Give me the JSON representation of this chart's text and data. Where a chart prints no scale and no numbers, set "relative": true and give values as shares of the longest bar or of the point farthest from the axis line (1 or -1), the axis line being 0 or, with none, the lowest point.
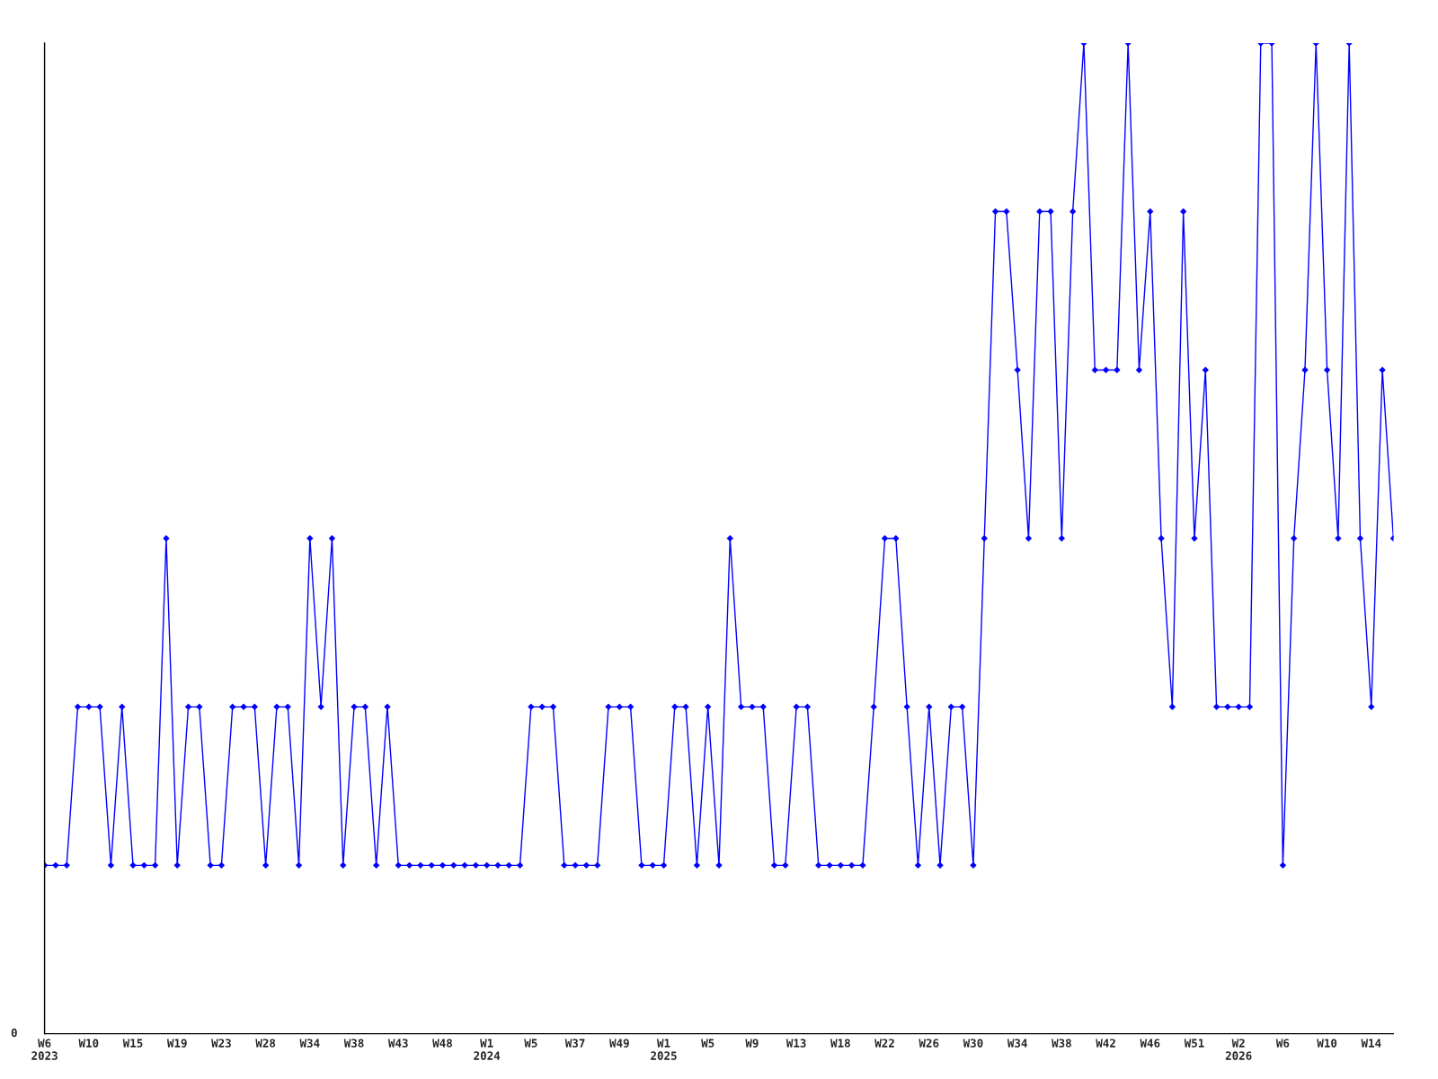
{
  "chart_data": {
    "type": "line",
    "relative": true,
    "categories": [
      "W6\n2023",
      null,
      null,
      null,
      "W10",
      null,
      null,
      null,
      "W15",
      null,
      null,
      null,
      "W19",
      null,
      null,
      null,
      "W23",
      null,
      null,
      null,
      "W28",
      null,
      null,
      null,
      "W34",
      null,
      null,
      null,
      "W38",
      null,
      null,
      null,
      "W43",
      null,
      null,
      null,
      "W48",
      null,
      null,
      null,
      "W1\n2024",
      null,
      null,
      null,
      "W5",
      null,
      null,
      null,
      "W37",
      null,
      null,
      null,
      "W49",
      null,
      null,
      null,
      "W1\n2025",
      null,
      null,
      null,
      "W5",
      null,
      null,
      null,
      "W9",
      null,
      null,
      null,
      "W13",
      null,
      null,
      null,
      "W18",
      null,
      null,
      null,
      "W22",
      null,
      null,
      null,
      "W26",
      null,
      null,
      null,
      "W30",
      null,
      null,
      null,
      "W34",
      null,
      null,
      null,
      "W38",
      null,
      null,
      null,
      "W42",
      null,
      null,
      null,
      "W46",
      null,
      null,
      null,
      "W51",
      null,
      null,
      null,
      "W2\n2026",
      null,
      null,
      null,
      "W6",
      null,
      null,
      null,
      "W10",
      null,
      null,
      null,
      "W14",
      null,
      null
    ],
    "series": [
      {
        "color": "#0000ff",
        "values": [
          0.17,
          0.17,
          0.17,
          0.33,
          0.33,
          0.33,
          0.17,
          0.33,
          0.17,
          0.17,
          0.17,
          0.5,
          0.17,
          0.33,
          0.33,
          0.17,
          0.17,
          0.33,
          0.33,
          0.33,
          0.17,
          0.33,
          0.33,
          0.17,
          0.5,
          0.33,
          0.5,
          0.17,
          0.33,
          0.33,
          0.17,
          0.33,
          0.17,
          0.17,
          0.17,
          0.17,
          0.17,
          0.17,
          0.17,
          0.17,
          0.17,
          0.17,
          0.17,
          0.17,
          0.33,
          0.33,
          0.33,
          0.17,
          0.17,
          0.17,
          0.17,
          0.33,
          0.33,
          0.33,
          0.17,
          0.17,
          0.17,
          0.33,
          0.33,
          0.17,
          0.33,
          0.17,
          0.5,
          0.33,
          0.33,
          0.33,
          0.17,
          0.17,
          0.33,
          0.33,
          0.17,
          0.17,
          0.17,
          0.17,
          0.17,
          0.33,
          0.5,
          0.5,
          0.33,
          0.17,
          0.33,
          0.17,
          0.33,
          0.33,
          0.17,
          0.5,
          0.83,
          0.83,
          0.67,
          0.5,
          0.83,
          0.83,
          0.5,
          0.83,
          1,
          0.67,
          0.67,
          0.67,
          1,
          0.67,
          0.83,
          0.5,
          0.33,
          0.83,
          0.5,
          0.67,
          0.33,
          0.33,
          0.33,
          0.33,
          1,
          1,
          0.17,
          0.5,
          0.67,
          1,
          0.67,
          0.5,
          1,
          0.5,
          0.33,
          0.67,
          0.5
        ]
      }
    ],
    "marker": "diamond",
    "line_style": "solid",
    "grid": false,
    "annotations": [
      "0"
    ]
  }
}
